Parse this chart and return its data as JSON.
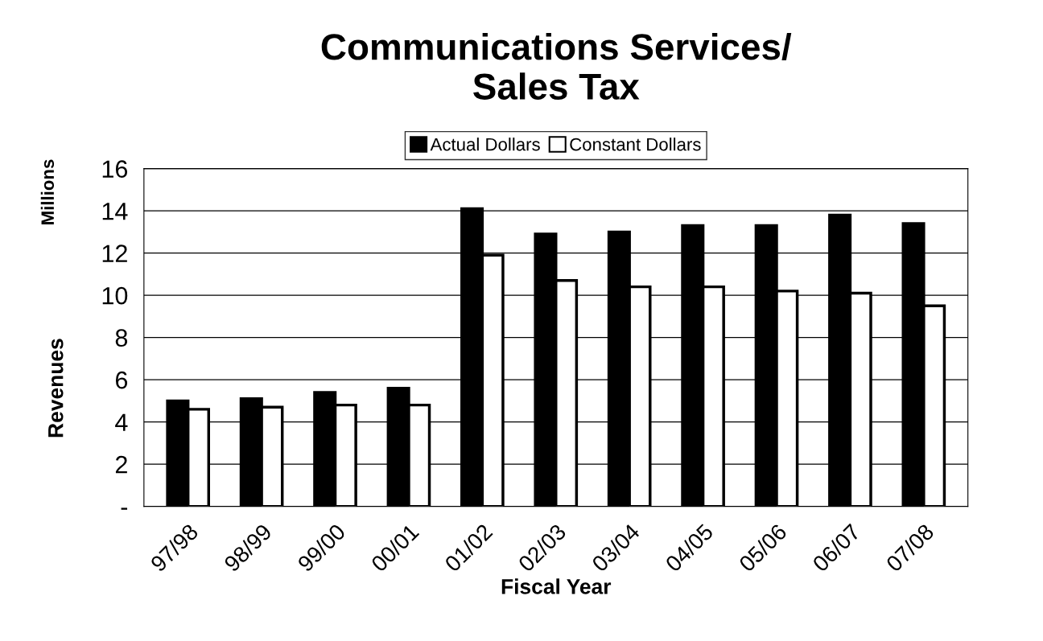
{
  "chart_data": {
    "type": "bar",
    "title": "Communications Services/\nSales Tax",
    "xlabel": "Fiscal Year",
    "ylabel": "Revenues",
    "annotations": [
      "Millions"
    ],
    "categories": [
      "97/98",
      "98/99",
      "99/00",
      "00/01",
      "01/02",
      "02/03",
      "03/04",
      "04/05",
      "05/06",
      "06/07",
      "07/08"
    ],
    "series": [
      {
        "name": "Actual Dollars",
        "color": "#000000",
        "values": [
          5.0,
          5.1,
          5.4,
          5.6,
          14.1,
          12.9,
          13.0,
          13.3,
          13.3,
          13.8,
          13.4
        ]
      },
      {
        "name": "Constant Dollars",
        "color": "#ffffff",
        "values": [
          4.6,
          4.7,
          4.8,
          4.8,
          11.9,
          10.7,
          10.4,
          10.4,
          10.2,
          10.1,
          9.5
        ]
      }
    ],
    "ylim": [
      0,
      16
    ],
    "yticks": [
      {
        "value": 0,
        "label": "-"
      },
      2,
      4,
      6,
      8,
      10,
      12,
      14,
      16
    ],
    "grid": "y",
    "legend": "top"
  }
}
